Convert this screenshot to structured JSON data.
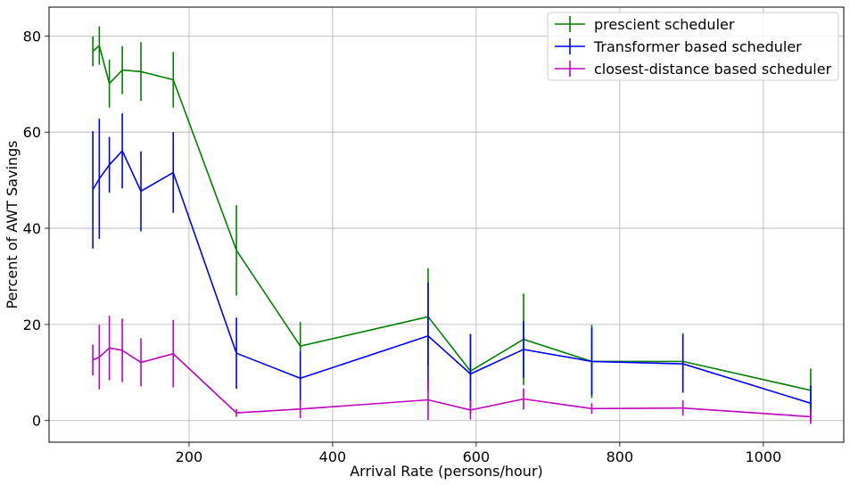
{
  "chart_data": {
    "type": "line",
    "title": "",
    "xlabel": "Arrival Rate (persons/hour)",
    "ylabel": "Percent of AWT Savings",
    "xlim": [
      5,
      1112
    ],
    "ylim": [
      -4.5,
      86
    ],
    "xticks": [
      200,
      400,
      600,
      800,
      1000
    ],
    "yticks": [
      0,
      20,
      40,
      60,
      80
    ],
    "grid": true,
    "legend_position": "top-right",
    "x": [
      66,
      75,
      89,
      107,
      133,
      178,
      266,
      355,
      533,
      592,
      666,
      761,
      888,
      1066
    ],
    "series": [
      {
        "name": "prescient scheduler",
        "color": "#008000",
        "values": [
          76.8,
          78,
          70.1,
          72.9,
          72.6,
          70.9,
          35.4,
          15.5,
          21.6,
          10.3,
          16.9,
          12.3,
          12.3,
          6.3
        ],
        "errors": [
          3.1,
          4.0,
          5.0,
          5.0,
          6.1,
          5.8,
          9.4,
          5.0,
          10.1,
          7.7,
          9.5,
          7.6,
          5.9,
          4.5
        ]
      },
      {
        "name": "Transformer based scheduler",
        "color": "#0000ff",
        "values": [
          48,
          50.3,
          53.2,
          56.1,
          47.7,
          51.6,
          14,
          8.8,
          17.6,
          9.7,
          14.8,
          12.3,
          11.8,
          3.6
        ],
        "errors": [
          12.2,
          12.5,
          5.8,
          7.8,
          8.3,
          8.4,
          7.4,
          5.7,
          11.1,
          8.3,
          5.9,
          7.0,
          6.0,
          3.7
        ]
      },
      {
        "name": "closest-distance based scheduler",
        "color": "#bf00bf",
        "values": [
          12.6,
          13.2,
          15.1,
          14.6,
          12.1,
          13.9,
          1.6,
          2.4,
          4.3,
          2.2,
          4.5,
          2.5,
          2.6,
          0.8
        ],
        "errors": [
          3.2,
          6.7,
          6.7,
          6.6,
          5.0,
          7.0,
          0.8,
          1.9,
          4.2,
          2.0,
          2.2,
          1.1,
          1.6,
          1.5
        ]
      }
    ]
  }
}
